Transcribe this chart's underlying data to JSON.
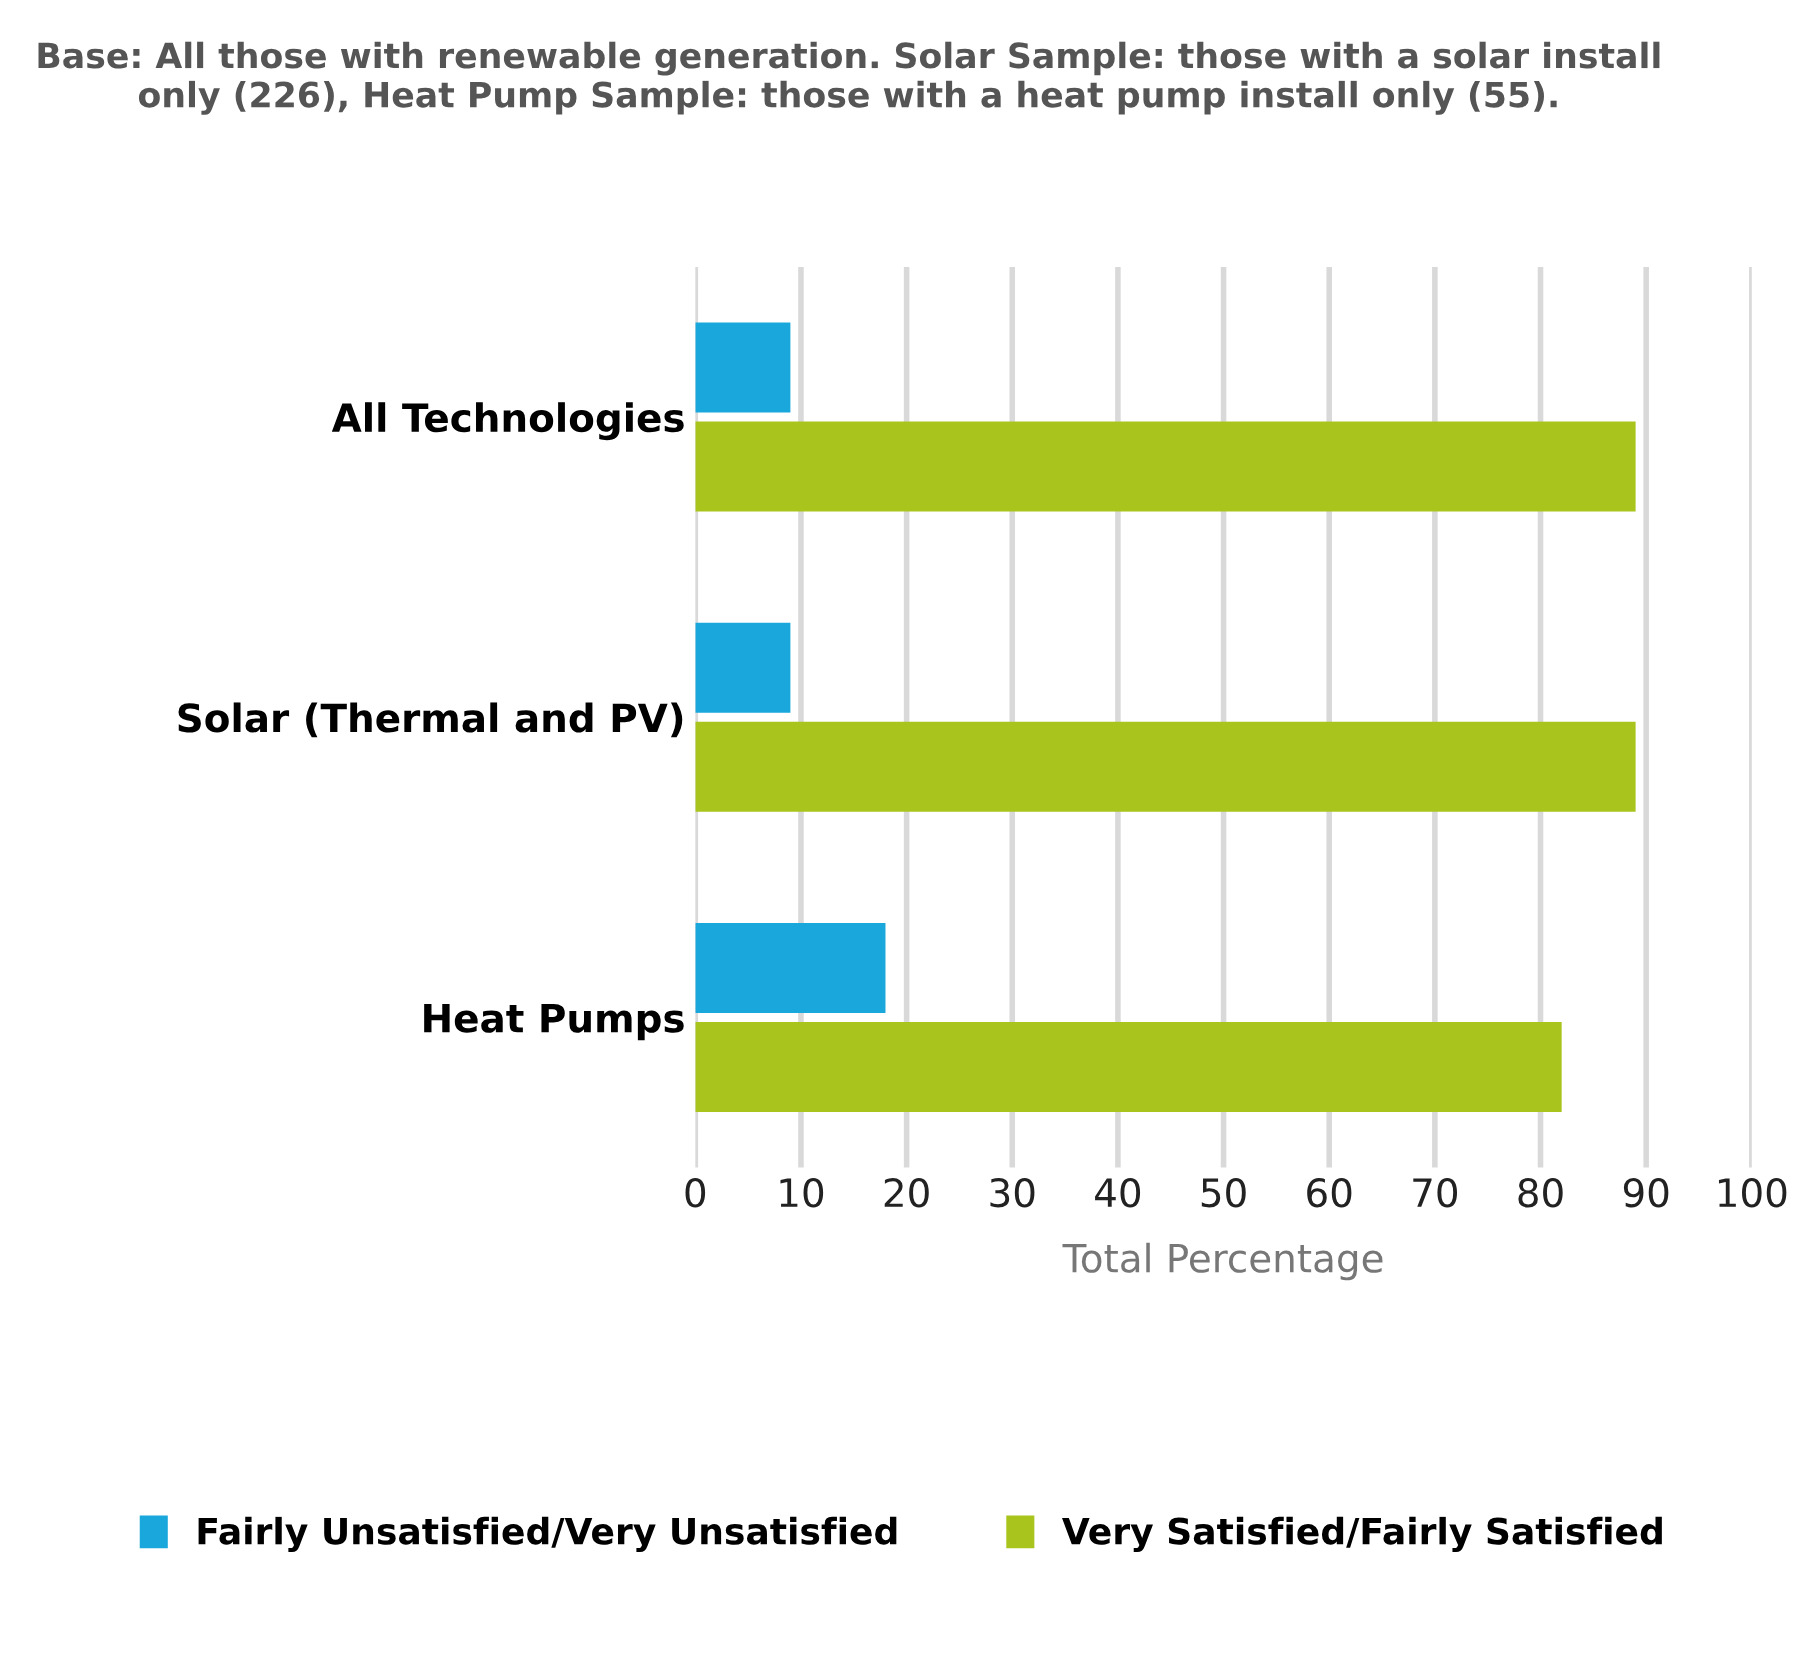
{
  "chart_data": {
    "type": "bar",
    "orientation": "horizontal",
    "title": "Base: All those with renewable generation. Solar Sample: those with a solar install only (226), Heat Pump Sample: those with a heat pump install only (55).",
    "categories": [
      "All Technologies",
      "Solar (Thermal and PV)",
      "Heat Pumps"
    ],
    "series": [
      {
        "name": "Fairly Unsatisfied/Very Unsatisfied",
        "color": "#1aa7dc",
        "values": [
          9,
          9,
          18
        ]
      },
      {
        "name": "Very Satisfied/Fairly Satisfied",
        "color": "#a9c41c",
        "values": [
          89,
          89,
          82
        ]
      }
    ],
    "xlim": [
      0,
      100
    ],
    "xticks": [
      0,
      10,
      20,
      30,
      40,
      50,
      60,
      70,
      80,
      90,
      100
    ],
    "xlabel": "Total Percentage",
    "grid": "x",
    "legend": "bottom"
  }
}
